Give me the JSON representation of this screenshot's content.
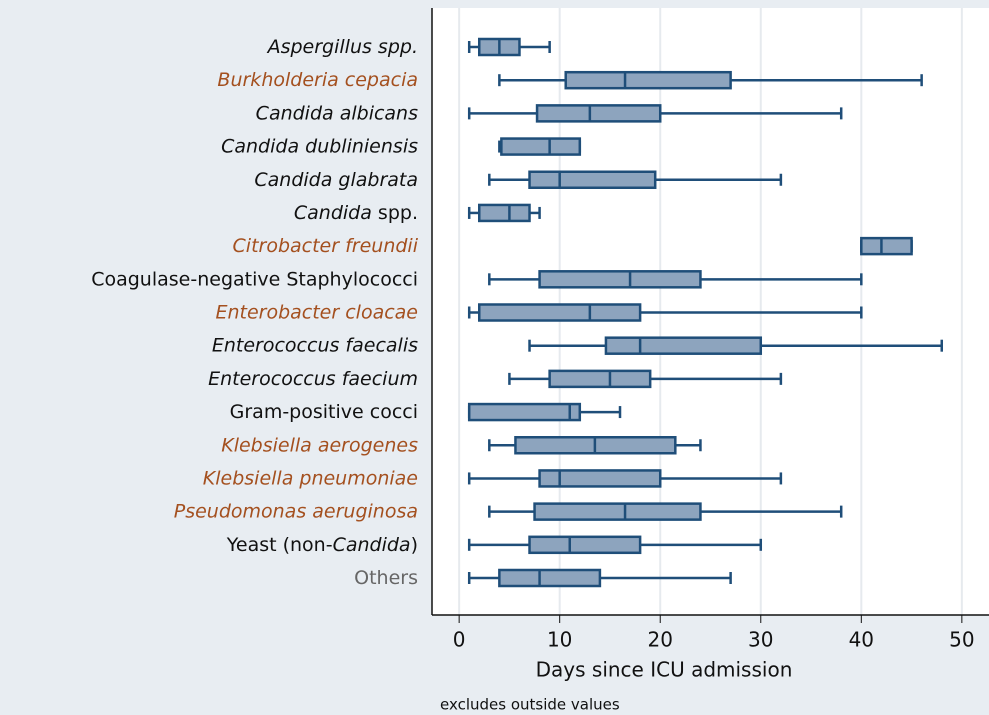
{
  "chart_data": {
    "type": "box",
    "orientation": "horizontal",
    "categories": [
      [
        {
          "text": "Aspergillus spp.",
          "italic": true
        }
      ],
      [
        {
          "text": "Burkholderia cepacia",
          "italic": true
        }
      ],
      [
        {
          "text": "Candida albicans",
          "italic": true
        }
      ],
      [
        {
          "text": "Candida dubliniensis",
          "italic": true
        }
      ],
      [
        {
          "text": "Candida glabrata",
          "italic": true
        }
      ],
      [
        {
          "text": "Candida",
          "italic": true
        },
        {
          "text": " spp.",
          "italic": false
        }
      ],
      [
        {
          "text": "Citrobacter freundii",
          "italic": true
        }
      ],
      [
        {
          "text": "Coagulase-negative Staphylococci",
          "italic": false
        }
      ],
      [
        {
          "text": "Enterobacter cloacae",
          "italic": true
        }
      ],
      [
        {
          "text": "Enterococcus faecalis",
          "italic": true
        }
      ],
      [
        {
          "text": "Enterococcus faecium",
          "italic": true
        }
      ],
      [
        {
          "text": "Gram-positive cocci",
          "italic": false
        }
      ],
      [
        {
          "text": "Klebsiella aerogenes",
          "italic": true
        }
      ],
      [
        {
          "text": "Klebsiella pneumoniae",
          "italic": true
        }
      ],
      [
        {
          "text": "Pseudomonas aeruginosa",
          "italic": true
        }
      ],
      [
        {
          "text": "Yeast (non-",
          "italic": false
        },
        {
          "text": "Candida",
          "italic": true
        },
        {
          "text": ")",
          "italic": false
        }
      ],
      [
        {
          "text": "Others",
          "italic": false
        }
      ]
    ],
    "label_colors": [
      "#111111",
      "#a4501f",
      "#111111",
      "#111111",
      "#111111",
      "#111111",
      "#a4501f",
      "#111111",
      "#a4501f",
      "#111111",
      "#111111",
      "#111111",
      "#a4501f",
      "#a4501f",
      "#a4501f",
      "#111111",
      "#666666"
    ],
    "min": [
      1,
      4,
      1,
      4,
      3,
      1,
      40,
      3,
      1,
      7,
      5,
      1,
      3,
      1,
      3,
      1,
      1
    ],
    "q1": [
      2,
      10.6,
      7.75,
      4.2,
      7,
      2,
      40,
      8,
      2,
      14.6,
      9,
      1,
      5.6,
      8,
      7.5,
      7,
      4
    ],
    "median": [
      4,
      16.5,
      13,
      9,
      10,
      5,
      42,
      17,
      13,
      18,
      15,
      11,
      13.5,
      10,
      16.5,
      11,
      8
    ],
    "q3": [
      6,
      27,
      20,
      12,
      19.5,
      7,
      45,
      24,
      18,
      30,
      19,
      12,
      21.5,
      20,
      24,
      18,
      14
    ],
    "max": [
      9,
      46,
      38,
      12,
      32,
      8,
      45,
      40,
      40,
      48,
      32,
      16,
      24,
      32,
      38,
      30,
      27
    ],
    "box_color": "#8da4be",
    "line_color": "#1f4e79",
    "xlim": [
      -2.7,
      52.7
    ],
    "xticks": [
      0,
      10,
      20,
      30,
      40,
      50
    ],
    "grid": true,
    "xlabel": "Days since ICU admission",
    "note": "excludes outside values"
  }
}
